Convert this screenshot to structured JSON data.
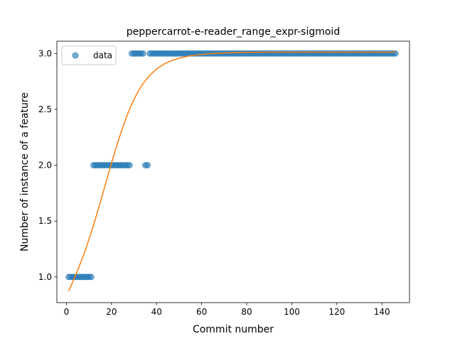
{
  "chart_data": {
    "type": "scatter",
    "title": "peppercarrot-e-reader_range_expr-sigmoid",
    "xlabel": "Commit number",
    "ylabel": "Number of instance of a feature",
    "xlim": [
      -4.25,
      152.25
    ],
    "ylim": [
      0.77,
      3.11
    ],
    "xticks": [
      0,
      20,
      40,
      60,
      80,
      100,
      120,
      140
    ],
    "yticks": [
      1.0,
      1.5,
      2.0,
      2.5,
      3.0
    ],
    "xtick_labels": [
      "0",
      "20",
      "40",
      "60",
      "80",
      "100",
      "120",
      "140"
    ],
    "ytick_labels": [
      "1.0",
      "1.5",
      "2.0",
      "2.5",
      "3.0"
    ],
    "grid": false,
    "legend": {
      "entries": [
        "data"
      ],
      "placement": "top-left"
    },
    "colors": {
      "points": "#1f77b4",
      "curve": "#ff7f0e"
    },
    "series": [
      {
        "name": "data",
        "kind": "scatter",
        "x": [
          1,
          2,
          3,
          4,
          5,
          6,
          7,
          8,
          9,
          10,
          11,
          12,
          13,
          14,
          15,
          16,
          17,
          18,
          19,
          20,
          21,
          22,
          23,
          24,
          25,
          26,
          27,
          28,
          29,
          30,
          31,
          32,
          33,
          34,
          35,
          36,
          37,
          38,
          39,
          40,
          41,
          42,
          43,
          44,
          45,
          46,
          47,
          48,
          49,
          50,
          51,
          52,
          53,
          54,
          55,
          56,
          57,
          58,
          59,
          60,
          61,
          62,
          63,
          64,
          65,
          66,
          67,
          68,
          69,
          70,
          71,
          72,
          73,
          74,
          75,
          76,
          77,
          78,
          79,
          80,
          81,
          82,
          83,
          84,
          85,
          86,
          87,
          88,
          89,
          90,
          91,
          92,
          93,
          94,
          95,
          96,
          97,
          98,
          99,
          100,
          101,
          102,
          103,
          104,
          105,
          106,
          107,
          108,
          109,
          110,
          111,
          112,
          113,
          114,
          115,
          116,
          117,
          118,
          119,
          120,
          121,
          122,
          123,
          124,
          125,
          126,
          127,
          128,
          129,
          130,
          131,
          132,
          133,
          134,
          135,
          136,
          137,
          138,
          139,
          140,
          141,
          142,
          143,
          144,
          145,
          146
        ],
        "y": [
          1,
          1,
          1,
          1,
          1,
          1,
          1,
          1,
          1,
          1,
          1,
          2,
          2,
          2,
          2,
          2,
          2,
          2,
          2,
          2,
          2,
          2,
          2,
          2,
          2,
          2,
          2,
          2,
          3,
          3,
          3,
          3,
          3,
          3,
          2,
          2,
          3,
          3,
          3,
          3,
          3,
          3,
          3,
          3,
          3,
          3,
          3,
          3,
          3,
          3,
          3,
          3,
          3,
          3,
          3,
          3,
          3,
          3,
          3,
          3,
          3,
          3,
          3,
          3,
          3,
          3,
          3,
          3,
          3,
          3,
          3,
          3,
          3,
          3,
          3,
          3,
          3,
          3,
          3,
          3,
          3,
          3,
          3,
          3,
          3,
          3,
          3,
          3,
          3,
          3,
          3,
          3,
          3,
          3,
          3,
          3,
          3,
          3,
          3,
          3,
          3,
          3,
          3,
          3,
          3,
          3,
          3,
          3,
          3,
          3,
          3,
          3,
          3,
          3,
          3,
          3,
          3,
          3,
          3,
          3,
          3,
          3,
          3,
          3,
          3,
          3,
          3,
          3,
          3,
          3,
          3,
          3,
          3,
          3,
          3,
          3,
          3,
          3,
          3,
          3,
          3,
          3,
          3,
          3,
          3,
          3
        ]
      },
      {
        "name": "",
        "kind": "line",
        "x": [
          1,
          3,
          5,
          7,
          9,
          11,
          13,
          15,
          17,
          19,
          21,
          23,
          25,
          27,
          29,
          31,
          33,
          35,
          37,
          40,
          43,
          46,
          50,
          55,
          60,
          65,
          70,
          80,
          90,
          100,
          110,
          120,
          130,
          140,
          146
        ],
        "y": [
          0.874,
          0.965,
          1.062,
          1.163,
          1.276,
          1.398,
          1.53,
          1.668,
          1.808,
          1.95,
          2.087,
          2.218,
          2.34,
          2.45,
          2.547,
          2.63,
          2.7,
          2.758,
          2.805,
          2.861,
          2.902,
          2.931,
          2.958,
          2.98,
          2.992,
          3.0,
          3.005,
          3.01,
          3.012,
          3.012,
          3.012,
          3.012,
          3.012,
          3.012,
          3.012
        ]
      }
    ]
  }
}
